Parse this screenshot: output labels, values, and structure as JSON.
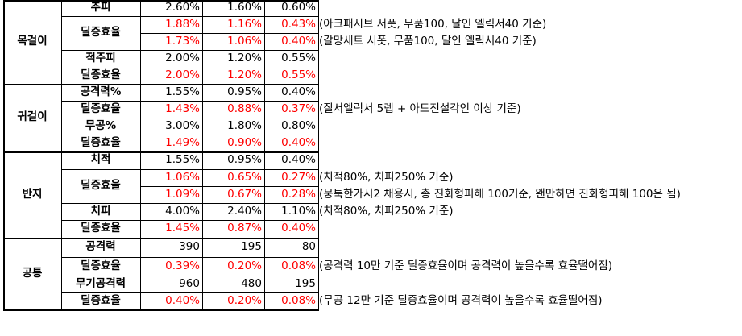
{
  "sections": [
    {
      "category": "목걸이",
      "rows": [
        {
          "label": "추피",
          "v1": "2.60%",
          "v2": "1.60%",
          "v3": "0.60%",
          "red": false,
          "note": ""
        },
        {
          "label": "딜증효율",
          "v1": "1.88%",
          "v2": "1.16%",
          "v3": "0.43%",
          "red": true,
          "note": "(아크패시브 서폿, 무품100, 달인 엘릭서40 기준)"
        },
        {
          "label": "",
          "v1": "1.73%",
          "v2": "1.06%",
          "v3": "0.40%",
          "red": true,
          "note": "(갈망세트 서폿, 무품100, 달인 엘릭서40 기준)"
        },
        {
          "label": "적주피",
          "v1": "2.00%",
          "v2": "1.20%",
          "v3": "0.55%",
          "red": false,
          "note": ""
        },
        {
          "label": "딜증효율",
          "v1": "2.00%",
          "v2": "1.20%",
          "v3": "0.55%",
          "red": true,
          "note": ""
        }
      ]
    },
    {
      "category": "귀걸이",
      "rows": [
        {
          "label": "공격력%",
          "v1": "1.55%",
          "v2": "0.95%",
          "v3": "0.40%",
          "red": false,
          "note": ""
        },
        {
          "label": "딜증효율",
          "v1": "1.43%",
          "v2": "0.88%",
          "v3": "0.37%",
          "red": true,
          "note": "(질서엘릭서 5렙 + 아드전설각인 이상 기준)"
        },
        {
          "label": "무공%",
          "v1": "3.00%",
          "v2": "1.80%",
          "v3": "0.80%",
          "red": false,
          "note": ""
        },
        {
          "label": "딜증효율",
          "v1": "1.49%",
          "v2": "0.90%",
          "v3": "0.40%",
          "red": true,
          "note": ""
        }
      ]
    },
    {
      "category": "반지",
      "rows": [
        {
          "label": "치적",
          "v1": "1.55%",
          "v2": "0.95%",
          "v3": "0.40%",
          "red": false,
          "note": ""
        },
        {
          "label": "딜증효율",
          "v1": "1.06%",
          "v2": "0.65%",
          "v3": "0.27%",
          "red": true,
          "note": "(치적80%, 치피250% 기준)"
        },
        {
          "label": "",
          "v1": "1.09%",
          "v2": "0.67%",
          "v3": "0.28%",
          "red": true,
          "note": "(뭉툭한가시2 채용시, 총 진화형피해 100기준, 왠만하면 진화형피해 100은 됨)"
        },
        {
          "label": "치피",
          "v1": "4.00%",
          "v2": "2.40%",
          "v3": "1.10%",
          "red": false,
          "note": "(치적80%, 치피250% 기준)"
        },
        {
          "label": "딜증효율",
          "v1": "1.45%",
          "v2": "0.87%",
          "v3": "0.40%",
          "red": true,
          "note": ""
        }
      ]
    },
    {
      "category": "공통",
      "rows": [
        {
          "label": "공격력",
          "v1": "390",
          "v2": "195",
          "v3": "80",
          "red": false,
          "note": ""
        },
        {
          "label": "딜증효율",
          "v1": "0.39%",
          "v2": "0.20%",
          "v3": "0.08%",
          "red": true,
          "note": "(공격력 10만 기준 딜증효율이며 공격력이 높을수록 효율떨어짐)"
        },
        {
          "label": "무기공격력",
          "v1": "960",
          "v2": "480",
          "v3": "195",
          "red": false,
          "note": ""
        },
        {
          "label": "딜증효율",
          "v1": "0.40%",
          "v2": "0.20%",
          "v3": "0.08%",
          "red": true,
          "note": "(무공 12만 기준 딜증효율이며 공격력이 높을수록 효율떨어짐)"
        }
      ]
    }
  ],
  "colors": {
    "highlight": "#ff0000",
    "text": "#000000",
    "border": "#000000"
  }
}
